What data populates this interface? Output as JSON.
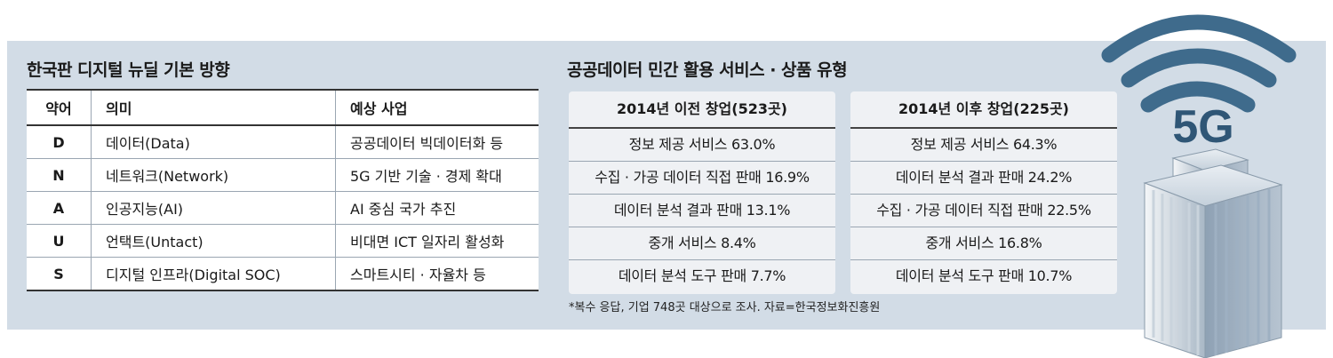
{
  "left": {
    "title": "한국판 디지털 뉴딜 기본 방향",
    "headers": [
      "약어",
      "의미",
      "예상 사업"
    ],
    "rows": [
      {
        "abbr": "D",
        "meaning": "데이터(Data)",
        "project": "공공데이터 빅데이터화 등"
      },
      {
        "abbr": "N",
        "meaning": "네트워크(Network)",
        "project": "5G 기반 기술 · 경제 확대"
      },
      {
        "abbr": "A",
        "meaning": "인공지능(AI)",
        "project": "AI 중심 국가 추진"
      },
      {
        "abbr": "U",
        "meaning": "언택트(Untact)",
        "project": "비대면 ICT 일자리 활성화"
      },
      {
        "abbr": "S",
        "meaning": "디지털 인프라(Digital SOC)",
        "project": "스마트시티 · 자율차 등"
      }
    ]
  },
  "right": {
    "title": "공공데이터 민간 활용 서비스 · 상품 유형",
    "before": {
      "header": "2014년 이전 창업(523곳)",
      "items": [
        "정보 제공 서비스 63.0%",
        "수집 · 가공 데이터 직접 판매 16.9%",
        "데이터 분석 결과 판매 13.1%",
        "중개 서비스 8.4%",
        "데이터 분석 도구 판매 7.7%"
      ]
    },
    "after": {
      "header": "2014년 이후 창업(225곳)",
      "items": [
        "정보 제공 서비스 64.3%",
        "데이터 분석 결과 판매 24.2%",
        "수집 · 가공 데이터 직접 판매 22.5%",
        "중개 서비스 16.8%",
        "데이터 분석 도구 판매 10.7%"
      ]
    },
    "note": "*복수 응답, 기업 748곳 대상으로 조사. 자료=한국정보화진흥원"
  },
  "graphic": {
    "label": "5G",
    "colors": {
      "panel": "#d2dce6",
      "signal": "#3f6b8c",
      "building": "#8ea1b4"
    }
  }
}
